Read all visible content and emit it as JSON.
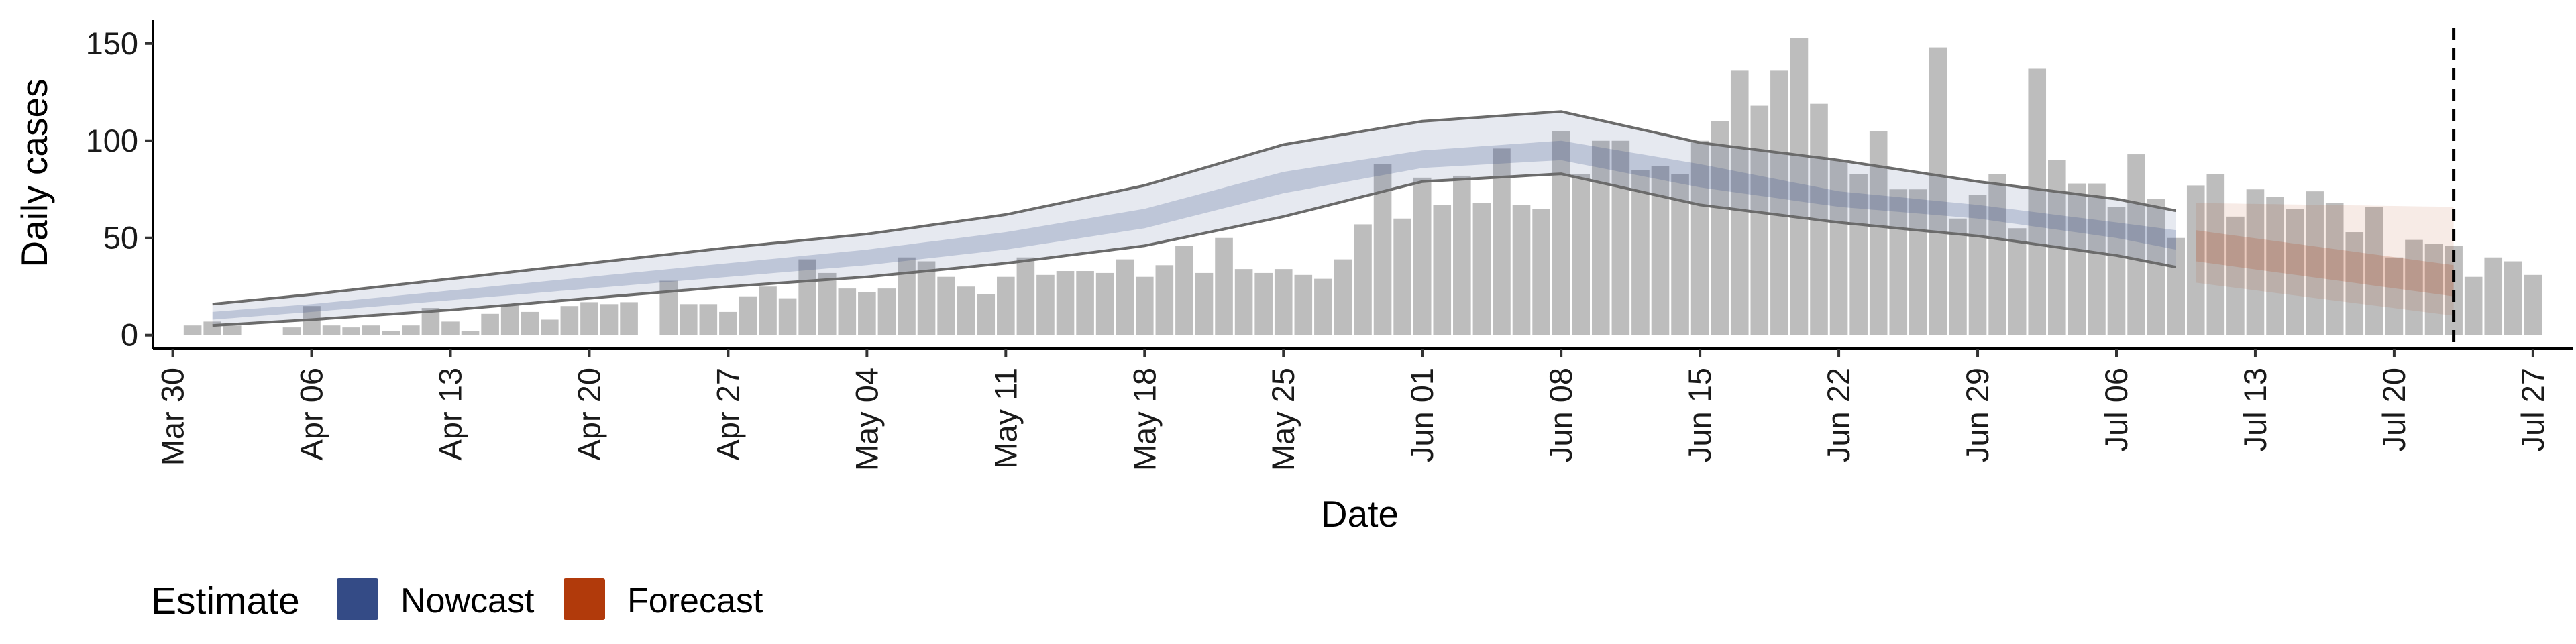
{
  "chart_data": {
    "type": "bar",
    "xlabel": "Date",
    "ylabel": "Daily cases",
    "ylim": [
      -7,
      162
    ],
    "yticks": [
      0,
      50,
      100,
      150
    ],
    "xlim": [
      "2020-03-29",
      "2020-07-29"
    ],
    "xticks": [
      "2020-03-30",
      "2020-04-06",
      "2020-04-13",
      "2020-04-20",
      "2020-04-27",
      "2020-05-04",
      "2020-05-11",
      "2020-05-18",
      "2020-05-25",
      "2020-06-01",
      "2020-06-08",
      "2020-06-15",
      "2020-06-22",
      "2020-06-29",
      "2020-07-06",
      "2020-07-13",
      "2020-07-20",
      "2020-07-27"
    ],
    "xtick_labels": [
      "Mar 30",
      "Apr 06",
      "Apr 13",
      "Apr 20",
      "Apr 27",
      "May 04",
      "May 11",
      "May 18",
      "May 25",
      "Jun 01",
      "Jun 08",
      "Jun 15",
      "Jun 22",
      "Jun 29",
      "Jul 06",
      "Jul 13",
      "Jul 20",
      "Jul 27"
    ],
    "grid": false,
    "legend": {
      "title": "Estimate",
      "position": "bottom-left",
      "entries": [
        {
          "label": "Nowcast",
          "color": "#344b86"
        },
        {
          "label": "Forecast",
          "color": "#b13a0b"
        }
      ]
    },
    "vline_date": "2020-07-23",
    "bars": {
      "name": "Daily cases",
      "color": "#bdbdbd",
      "start_date": "2020-03-31",
      "values": [
        5,
        7,
        5,
        0,
        0,
        4,
        15,
        5,
        4,
        5,
        2,
        5,
        14,
        7,
        2,
        11,
        16,
        12,
        8,
        15,
        17,
        16,
        17,
        0,
        28,
        16,
        16,
        12,
        20,
        25,
        19,
        39,
        32,
        24,
        22,
        24,
        40,
        38,
        30,
        25,
        21,
        30,
        40,
        31,
        33,
        33,
        32,
        39,
        30,
        36,
        46,
        32,
        50,
        34,
        32,
        34,
        31,
        29,
        39,
        57,
        88,
        60,
        81,
        67,
        82,
        68,
        96,
        67,
        65,
        105,
        83,
        100,
        100,
        85,
        87,
        83,
        100,
        110,
        136,
        118,
        136,
        153,
        119,
        90,
        83,
        105,
        75,
        75,
        148,
        60,
        72,
        83,
        55,
        137,
        90,
        78,
        78,
        66,
        93,
        70,
        50,
        77,
        83,
        61,
        75,
        71,
        65,
        74,
        68,
        53,
        66,
        40,
        49,
        47,
        46,
        30,
        40,
        38,
        31
      ]
    },
    "nowcast": {
      "start_date": "2020-04-01",
      "end_date": "2020-07-09",
      "color": "#344b86",
      "outer_upper_anchors": [
        [
          "2020-04-01",
          16
        ],
        [
          "2020-04-06",
          21
        ],
        [
          "2020-04-13",
          29
        ],
        [
          "2020-04-20",
          37
        ],
        [
          "2020-04-27",
          45
        ],
        [
          "2020-05-04",
          52
        ],
        [
          "2020-05-11",
          62
        ],
        [
          "2020-05-18",
          77
        ],
        [
          "2020-05-25",
          98
        ],
        [
          "2020-06-01",
          110
        ],
        [
          "2020-06-08",
          115
        ],
        [
          "2020-06-15",
          99
        ],
        [
          "2020-06-22",
          90
        ],
        [
          "2020-06-29",
          79
        ],
        [
          "2020-07-06",
          70
        ],
        [
          "2020-07-09",
          64
        ]
      ],
      "inner_upper_anchors": [
        [
          "2020-04-01",
          12
        ],
        [
          "2020-04-06",
          16
        ],
        [
          "2020-04-13",
          23
        ],
        [
          "2020-04-20",
          30
        ],
        [
          "2020-04-27",
          37
        ],
        [
          "2020-05-04",
          44
        ],
        [
          "2020-05-11",
          53
        ],
        [
          "2020-05-18",
          65
        ],
        [
          "2020-05-25",
          84
        ],
        [
          "2020-06-01",
          95
        ],
        [
          "2020-06-08",
          100
        ],
        [
          "2020-06-15",
          88
        ],
        [
          "2020-06-22",
          74
        ],
        [
          "2020-06-29",
          67
        ],
        [
          "2020-07-06",
          58
        ],
        [
          "2020-07-09",
          54
        ]
      ],
      "inner_lower_anchors": [
        [
          "2020-04-01",
          8
        ],
        [
          "2020-04-06",
          12
        ],
        [
          "2020-04-13",
          18
        ],
        [
          "2020-04-20",
          24
        ],
        [
          "2020-04-27",
          30
        ],
        [
          "2020-05-04",
          36
        ],
        [
          "2020-05-11",
          44
        ],
        [
          "2020-05-18",
          55
        ],
        [
          "2020-05-25",
          73
        ],
        [
          "2020-06-01",
          86
        ],
        [
          "2020-06-08",
          90
        ],
        [
          "2020-06-15",
          76
        ],
        [
          "2020-06-22",
          66
        ],
        [
          "2020-06-29",
          60
        ],
        [
          "2020-07-06",
          50
        ],
        [
          "2020-07-09",
          44
        ]
      ],
      "outer_lower_anchors": [
        [
          "2020-04-01",
          5
        ],
        [
          "2020-04-06",
          8
        ],
        [
          "2020-04-13",
          13
        ],
        [
          "2020-04-20",
          19
        ],
        [
          "2020-04-27",
          25
        ],
        [
          "2020-05-04",
          30
        ],
        [
          "2020-05-11",
          37
        ],
        [
          "2020-05-18",
          46
        ],
        [
          "2020-05-25",
          61
        ],
        [
          "2020-06-01",
          79
        ],
        [
          "2020-06-08",
          83
        ],
        [
          "2020-06-15",
          67
        ],
        [
          "2020-06-22",
          58
        ],
        [
          "2020-06-29",
          51
        ],
        [
          "2020-07-06",
          41
        ],
        [
          "2020-07-09",
          35
        ]
      ]
    },
    "forecast": {
      "start_date": "2020-07-10",
      "end_date": "2020-07-23",
      "color": "#b13a0b",
      "outer_upper_anchors": [
        [
          "2020-07-10",
          68
        ],
        [
          "2020-07-23",
          66
        ]
      ],
      "inner_upper_anchors": [
        [
          "2020-07-10",
          54
        ],
        [
          "2020-07-23",
          36
        ]
      ],
      "inner_lower_anchors": [
        [
          "2020-07-10",
          38
        ],
        [
          "2020-07-23",
          20
        ]
      ],
      "outer_lower_anchors": [
        [
          "2020-07-10",
          27
        ],
        [
          "2020-07-23",
          10
        ]
      ]
    }
  }
}
